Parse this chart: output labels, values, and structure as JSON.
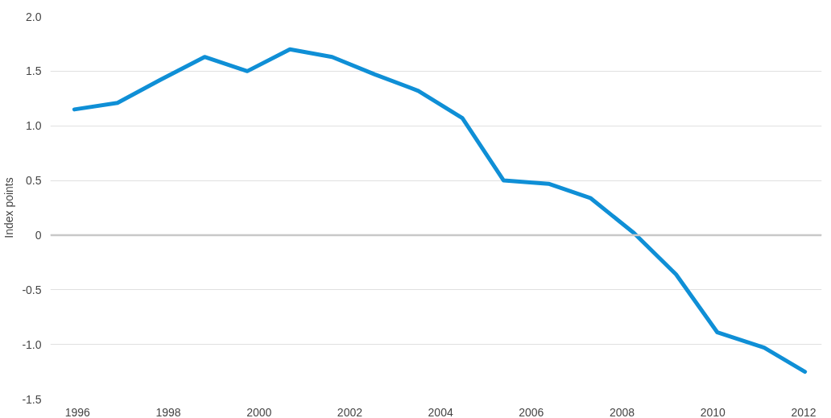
{
  "chart_data": {
    "type": "line",
    "ylabel": "Index points",
    "x": [
      1995.93,
      1996.88,
      1997.82,
      1998.8,
      1999.74,
      2000.68,
      2001.61,
      2002.55,
      2003.51,
      2004.48,
      2005.39,
      2006.38,
      2007.3,
      2008.26,
      2009.19,
      2010.1,
      2011.13,
      2012.03
    ],
    "series": [
      {
        "color": "#0f8fd6",
        "values": [
          1.15,
          1.21,
          1.42,
          1.63,
          1.5,
          1.7,
          1.63,
          1.47,
          1.32,
          1.07,
          0.5,
          0.47,
          0.34,
          0.02,
          -0.36,
          -0.89,
          -1.03,
          -1.25
        ]
      }
    ],
    "xlim": [
      1995.4,
      2012.4
    ],
    "xticks": [
      1996,
      1998,
      2000,
      2002,
      2004,
      2006,
      2008,
      2010,
      2012
    ],
    "ylim": [
      -1.5,
      2.0
    ],
    "yticks": [
      {
        "value": -1.5,
        "label": "-1.5"
      },
      {
        "value": -1.0,
        "label": "-1.0"
      },
      {
        "value": -0.5,
        "label": "-0.5"
      },
      0,
      0.5,
      {
        "value": 1.0,
        "label": "1.0"
      },
      1.5,
      {
        "value": 2.0,
        "label": "2.0"
      }
    ],
    "ref_lines": [
      {
        "axis": "y",
        "value": 0,
        "color": "#c8c8c8"
      }
    ],
    "grid": "y",
    "line_style": "solid"
  }
}
